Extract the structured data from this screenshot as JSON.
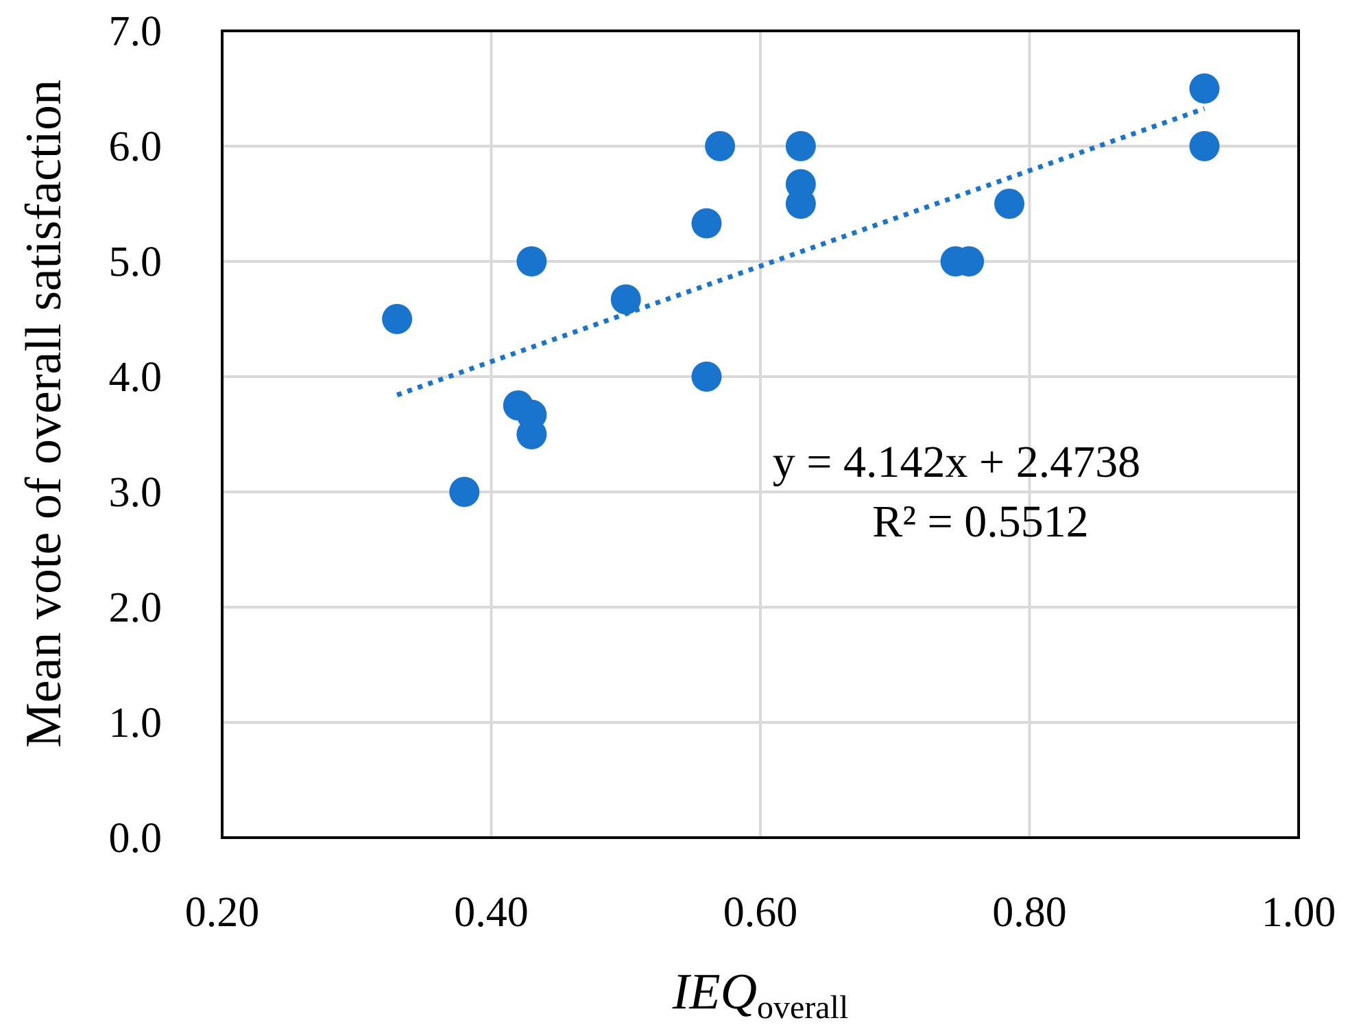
{
  "chart_data": {
    "type": "scatter",
    "title": "",
    "xlabel_main": "IEQ",
    "xlabel_sub": "overall",
    "ylabel": "Mean vote of overall satisfaction",
    "xlim": [
      0.2,
      1.0
    ],
    "ylim": [
      0.0,
      7.0
    ],
    "xticks": [
      "0.20",
      "0.40",
      "0.60",
      "0.80",
      "1.00"
    ],
    "yticks": [
      "0.0",
      "1.0",
      "2.0",
      "3.0",
      "4.0",
      "5.0",
      "6.0",
      "7.0"
    ],
    "grid": true,
    "series": [
      {
        "name": "Mean vote of overall satisfaction",
        "color": "#1874CD",
        "points": [
          {
            "x": 0.33,
            "y": 4.5
          },
          {
            "x": 0.38,
            "y": 3.0
          },
          {
            "x": 0.42,
            "y": 3.75
          },
          {
            "x": 0.43,
            "y": 3.67
          },
          {
            "x": 0.43,
            "y": 3.5
          },
          {
            "x": 0.43,
            "y": 5.0
          },
          {
            "x": 0.5,
            "y": 4.67
          },
          {
            "x": 0.56,
            "y": 5.33
          },
          {
            "x": 0.56,
            "y": 4.0
          },
          {
            "x": 0.57,
            "y": 6.0
          },
          {
            "x": 0.63,
            "y": 6.0
          },
          {
            "x": 0.63,
            "y": 5.67
          },
          {
            "x": 0.63,
            "y": 5.5
          },
          {
            "x": 0.745,
            "y": 5.0
          },
          {
            "x": 0.755,
            "y": 5.0
          },
          {
            "x": 0.785,
            "y": 5.5
          },
          {
            "x": 0.93,
            "y": 6.5
          },
          {
            "x": 0.93,
            "y": 6.0
          }
        ]
      }
    ],
    "trendline": {
      "type": "linear",
      "style": "dotted",
      "color": "#1874CD",
      "slope": 4.142,
      "intercept": 2.4738,
      "x_range": [
        0.33,
        0.93
      ]
    },
    "annotation": {
      "equation": "y = 4.142x + 2.4738",
      "r_squared": "R² = 0.5512"
    }
  }
}
